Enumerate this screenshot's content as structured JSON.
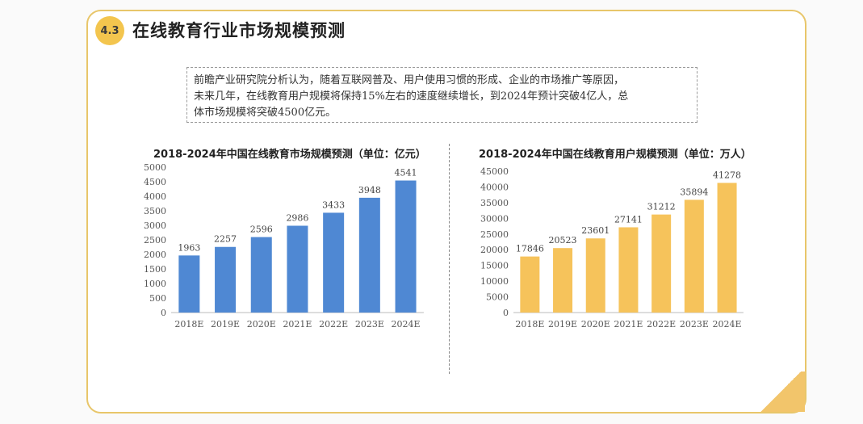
{
  "header": {
    "badge": "4.3",
    "title": "在线教育行业市场规模预测"
  },
  "note": {
    "line1": "前瞻产业研究院分析认为，随着互联网普及、用户使用习惯的形成、企业的市场推广等原因，",
    "line2": "未来几年，在线教育用户规模将保持15%左右的速度继续增长，到2024年预计突破4亿人，总",
    "line3": "体市场规模将突破4500亿元。"
  },
  "colors": {
    "accent": "#f3c54e",
    "frame": "#e8c66a",
    "blue_bar": "#4f88d3",
    "yellow_bar": "#f6c35b"
  },
  "chart_data": [
    {
      "type": "bar",
      "title": "2018-2024年中国在线教育市场规模预测（单位：亿元）",
      "categories": [
        "2018E",
        "2019E",
        "2020E",
        "2021E",
        "2022E",
        "2023E",
        "2024E"
      ],
      "values": [
        1963,
        2257,
        2596,
        2986,
        3433,
        3948,
        4541
      ],
      "data_labels": [
        "1963",
        "2257",
        "2596",
        "2986",
        "3433",
        "3948",
        "4541"
      ],
      "ylim": [
        0,
        5000
      ],
      "yticks": [
        "0",
        "500",
        "1000",
        "1500",
        "2000",
        "2500",
        "3000",
        "3500",
        "4000",
        "4500",
        "5000"
      ],
      "color": "#4f88d3",
      "grid": false
    },
    {
      "type": "bar",
      "title": "2018-2024年中国在线教育用户规模预测（单位：万人）",
      "categories": [
        "2018E",
        "2019E",
        "2020E",
        "2021E",
        "2022E",
        "2023E",
        "2024E"
      ],
      "values": [
        17846,
        20523,
        23601,
        27141,
        31212,
        35894,
        41278
      ],
      "data_labels": [
        "17846",
        "20523",
        "23601",
        "27141",
        "31212",
        "35894",
        "41278"
      ],
      "ylim": [
        0,
        45000
      ],
      "yticks": [
        "0",
        "5000",
        "10000",
        "15000",
        "20000",
        "25000",
        "30000",
        "35000",
        "40000",
        "45000"
      ],
      "color": "#f6c35b",
      "grid": false
    }
  ]
}
